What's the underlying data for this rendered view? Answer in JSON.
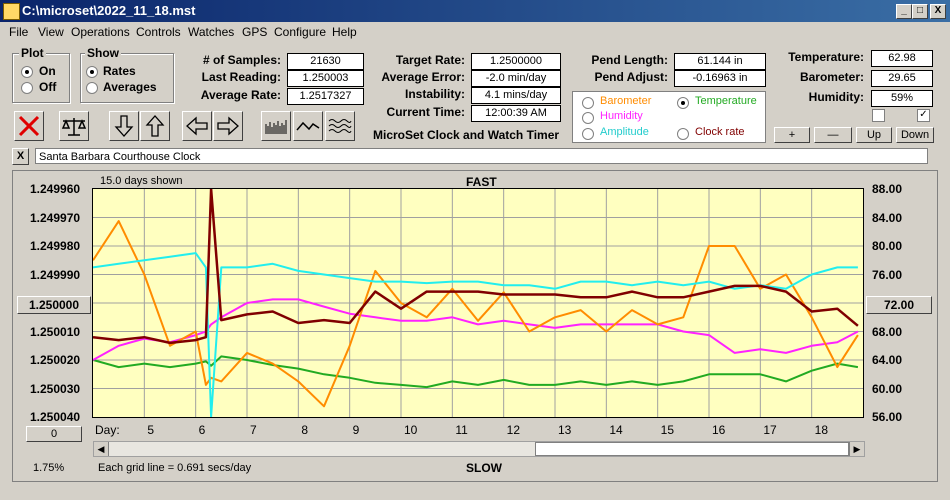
{
  "window": {
    "title": "C:\\microset\\2022_11_18.mst",
    "min": "_",
    "max": "□",
    "close": "X"
  },
  "menu": [
    "File",
    "View",
    "Operations",
    "Controls",
    "Watches",
    "GPS",
    "Configure",
    "Help"
  ],
  "plot_group": {
    "title": "Plot",
    "on": "On",
    "off": "Off"
  },
  "show_group": {
    "title": "Show",
    "rates": "Rates",
    "averages": "Averages"
  },
  "stats": {
    "samples_label": "# of Samples:",
    "samples": "21630",
    "last_label": "Last Reading:",
    "last": "1.250003",
    "avg_label": "Average Rate:",
    "avg": "1.2517327",
    "target_label": "Target Rate:",
    "target": "1.2500000",
    "avgerr_label": "Average Error:",
    "avgerr": "-2.0 min/day",
    "instab_label": "Instability:",
    "instab": "4.1 mins/day",
    "time_label": "Current Time:",
    "time": "12:00:39 AM",
    "pendlen_label": "Pend Length:",
    "pendlen": "61.144 in",
    "pendadj_label": "Pend Adjust:",
    "pendadj": "-0.16963 in",
    "temp_label": "Temperature:",
    "temp": "62.98",
    "baro_label": "Barometer:",
    "baro": "29.65",
    "hum_label": "Humidity:",
    "hum": "59%"
  },
  "series_select": {
    "barometer": "Barometer",
    "temperature": "Temperature",
    "humidity": "Humidity",
    "amplitude": "Amplitude",
    "clock_rate": "Clock rate"
  },
  "subtitle": "MicroSet Clock and Watch Timer",
  "scale_buttons": {
    "plus": "+",
    "minus": "—",
    "up": "Up",
    "down": "Down"
  },
  "checks": {
    "left": "",
    "right": "✓"
  },
  "clock_name": "Santa Barbara Courthouse Clock",
  "clear_btn": "X",
  "chart_header": {
    "days_shown": "15.0 days shown",
    "fast": "FAST",
    "slow": "SLOW",
    "grid": "Each grid line = 0.691 secs/day",
    "day_label": "Day:",
    "left_btn": "1.250000",
    "right_btn": "72.00",
    "zero_btn": "0",
    "pct": "1.75%"
  },
  "colors": {
    "temperature": "#22aa22",
    "barometer": "#ff8c00",
    "humidity": "#ff22ff",
    "amplitude": "#22eeee",
    "rate": "#800000",
    "plot_bg": "#ffffc0"
  },
  "chart_data": {
    "type": "line",
    "x_label": "Day:",
    "x": [
      4,
      4.5,
      5,
      5.5,
      6,
      6.2,
      6.3,
      6.5,
      7,
      7.5,
      8,
      8.5,
      9,
      9.5,
      10,
      10.5,
      11,
      11.5,
      12,
      12.5,
      13,
      13.5,
      14,
      14.5,
      15,
      15.5,
      16,
      16.5,
      17,
      17.5,
      18,
      18.5,
      18.9
    ],
    "xlim": [
      4,
      19
    ],
    "x_ticks": [
      5,
      6,
      7,
      8,
      9,
      10,
      11,
      12,
      13,
      14,
      15,
      16,
      17,
      18
    ],
    "left_axis": {
      "ticks": [
        "1.249960",
        "1.249970",
        "1.249980",
        "1.249990",
        "1.250000",
        "1.250010",
        "1.250020",
        "1.250030",
        "1.250040"
      ],
      "ylim": [
        1.24996,
        1.25004
      ],
      "inverted": true
    },
    "right_axis": {
      "ticks": [
        "88.00",
        "84.00",
        "80.00",
        "76.00",
        "72.00",
        "68.00",
        "64.00",
        "60.00",
        "56.00"
      ],
      "ylim": [
        56,
        88
      ]
    },
    "series": [
      {
        "name": "Temperature",
        "axis": "right",
        "values": [
          64,
          63,
          63.5,
          63,
          63.5,
          63.8,
          63.2,
          64.5,
          64,
          63.3,
          62.8,
          62,
          61.5,
          60.8,
          60.5,
          60.2,
          61,
          60.5,
          61.2,
          60.5,
          60.5,
          61,
          60.5,
          61,
          60.5,
          61,
          62,
          62,
          62,
          61,
          62.5,
          63.5,
          63
        ]
      },
      {
        "name": "Barometer",
        "axis": "right",
        "values": [
          78,
          83.5,
          76,
          66,
          68,
          60.5,
          61.5,
          61,
          65,
          63.5,
          61,
          57.5,
          66,
          76.5,
          72,
          70,
          74,
          69.5,
          73.5,
          68,
          70,
          71,
          68,
          71,
          69,
          70,
          80,
          80,
          74,
          76,
          70,
          63,
          67.5
        ]
      },
      {
        "name": "Humidity",
        "axis": "right",
        "values": [
          64,
          66,
          67,
          66.5,
          67.5,
          68,
          69,
          70,
          72,
          72.5,
          72.5,
          71.5,
          70.5,
          70,
          69.5,
          69.5,
          70,
          69,
          69.5,
          69,
          68.5,
          69,
          69,
          69,
          69,
          68,
          67.5,
          65,
          65.5,
          65,
          66,
          66.5,
          68
        ]
      },
      {
        "name": "Amplitude",
        "axis": "right",
        "values": [
          77,
          77.5,
          78,
          78.5,
          79,
          77,
          56,
          77,
          77,
          77.5,
          76.5,
          76,
          75.5,
          75,
          75,
          74.8,
          75,
          75,
          74.5,
          74.5,
          74,
          75,
          75,
          74.5,
          75,
          74.5,
          75,
          74,
          74.5,
          74,
          76,
          77,
          77
        ]
      },
      {
        "name": "Clock rate",
        "axis": "left",
        "values": [
          1.250012,
          1.250013,
          1.250012,
          1.250014,
          1.250013,
          1.250012,
          1.24996,
          1.250006,
          1.250004,
          1.250003,
          1.250007,
          1.250006,
          1.250007,
          1.249996,
          1.250002,
          1.249996,
          1.249996,
          1.249996,
          1.249997,
          1.249997,
          1.249997,
          1.249998,
          1.249998,
          1.249996,
          1.249998,
          1.249998,
          1.249996,
          1.249994,
          1.249994,
          1.249996,
          1.250003,
          1.250002,
          1.250008
        ]
      }
    ]
  }
}
